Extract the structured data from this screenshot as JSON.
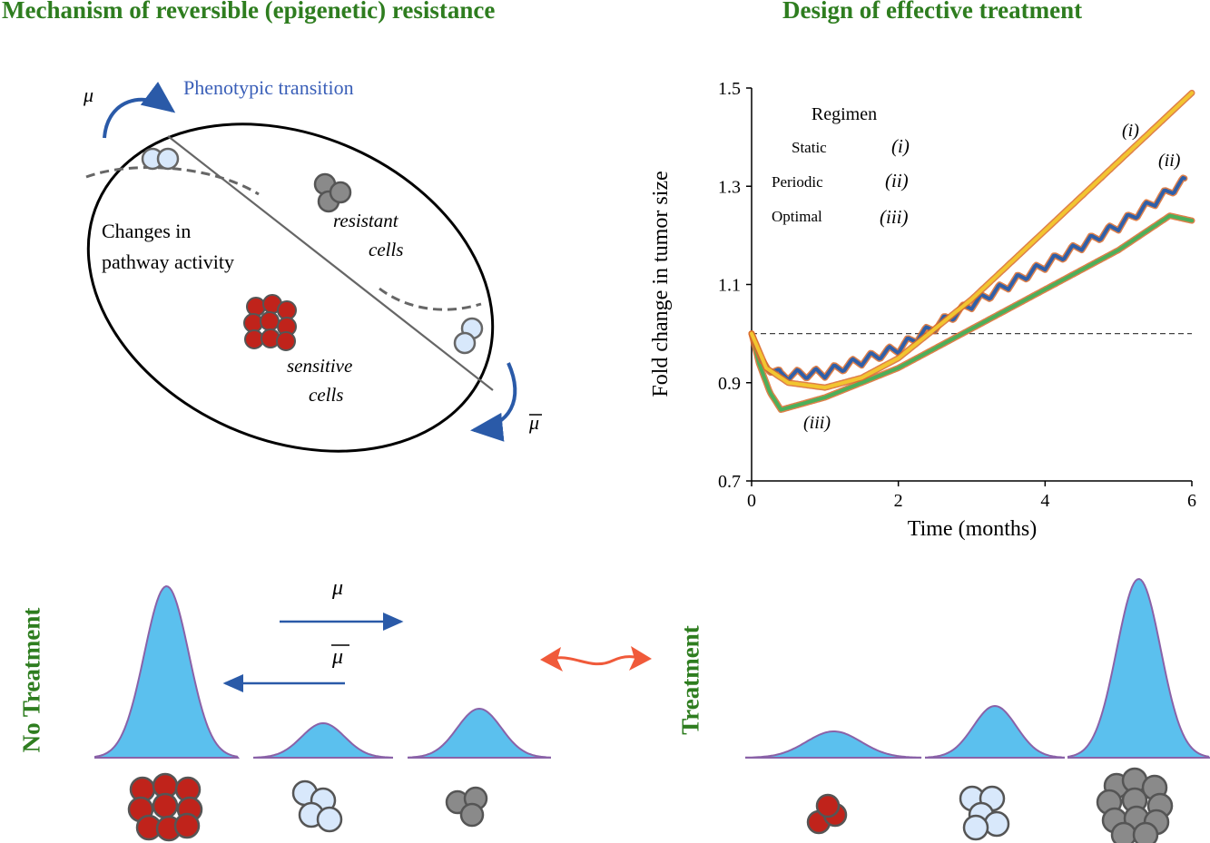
{
  "headers": {
    "left": "Mechanism of reversible (epigenetic) resistance",
    "right": "Design of effective treatment"
  },
  "mechanism": {
    "mu": "μ",
    "mu_bar": "μ",
    "transition_label": "Phenotypic transition",
    "changes_line1": "Changes in",
    "changes_line2": "pathway activity",
    "resistant_line1": "resistant",
    "resistant_line2": "cells",
    "sensitive_line1": "sensitive",
    "sensitive_line2": "cells",
    "colors": {
      "sensitive": "#c0231b",
      "transition": "#d8e8fb",
      "resistant": "#8a8a8a",
      "arrow": "#2a5aa8"
    }
  },
  "distributions": {
    "no_treatment_label": "No Treatment",
    "treatment_label": "Treatment",
    "mu": "μ",
    "mu_bar": "μ",
    "fill": "#5bc0ee",
    "outline": "#8a62a8",
    "double_arrow": "#f05a3a"
  },
  "chart_data": {
    "type": "line",
    "title": "",
    "xlabel": "Time (months)",
    "ylabel": "Fold change in tumor size",
    "xlim": [
      0,
      6
    ],
    "ylim": [
      0.7,
      1.5
    ],
    "xticks": [
      0,
      2,
      4,
      6
    ],
    "yticks": [
      0.7,
      0.9,
      1.1,
      1.3,
      1.5
    ],
    "xtick_labels": [
      "0",
      "2",
      "4",
      "6"
    ],
    "ytick_labels": [
      "0.7",
      "0.9",
      "1.1",
      "1.3",
      "1.5"
    ],
    "reference_line": 1.0,
    "legend": {
      "title": "Regimen",
      "entries": [
        {
          "name": "Static",
          "tag": "(i)"
        },
        {
          "name": "Periodic",
          "tag": "(ii)"
        },
        {
          "name": "Optimal",
          "tag": "(iii)"
        }
      ]
    },
    "series": [
      {
        "name": "(i)",
        "color": "#f2c530",
        "x": [
          0,
          0.2,
          0.5,
          1.0,
          1.5,
          2.0,
          2.5,
          3.0,
          3.5,
          4.0,
          4.5,
          5.0,
          5.5,
          6.0
        ],
        "y": [
          1.0,
          0.93,
          0.9,
          0.89,
          0.91,
          0.95,
          1.01,
          1.07,
          1.14,
          1.21,
          1.28,
          1.35,
          1.42,
          1.49
        ]
      },
      {
        "name": "(ii)",
        "color": "#2f5fa8",
        "period": 0.25,
        "amplitude": 0.02,
        "x": [
          0,
          0.15,
          0.4,
          1.0,
          2.0,
          3.0,
          4.0,
          5.0,
          5.9
        ],
        "y": [
          1.0,
          0.94,
          0.915,
          0.92,
          0.97,
          1.06,
          1.14,
          1.22,
          1.31
        ]
      },
      {
        "name": "(iii)",
        "color": "#4caf5a",
        "x": [
          0,
          0.1,
          0.25,
          0.4,
          1.0,
          2.0,
          3.0,
          4.0,
          5.0,
          5.7,
          6.0
        ],
        "y": [
          1.0,
          0.94,
          0.88,
          0.845,
          0.87,
          0.93,
          1.01,
          1.09,
          1.17,
          1.24,
          1.23
        ]
      }
    ]
  }
}
